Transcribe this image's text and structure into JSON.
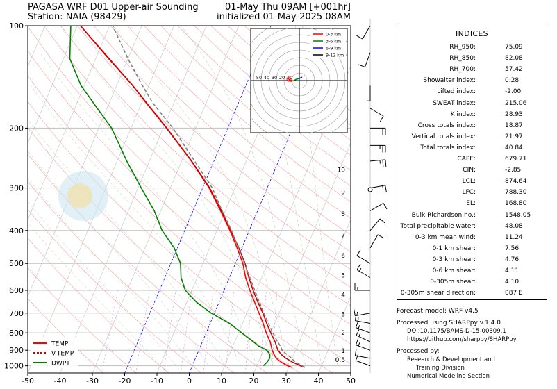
{
  "header": {
    "title_left_line1": "PAGASA WRF D01 Upper-air Sounding",
    "title_left_line2": "Station: NAIA (98429)",
    "title_right_line1": "01-May Thu 09AM [+001hr]",
    "title_right_line2": "initialized 01-May-2025 08AM"
  },
  "chart_data": {
    "type": "line",
    "subtype": "skew-t log-p sounding",
    "x_axis": {
      "label": "",
      "ticks": [
        -50,
        -40,
        -30,
        -20,
        -10,
        0,
        10,
        20,
        30,
        40,
        50
      ],
      "xlim": [
        -50,
        50
      ],
      "unit": "°C"
    },
    "y_axis": {
      "label": "",
      "scale": "log",
      "ticks": [
        100,
        200,
        300,
        400,
        500,
        600,
        700,
        800,
        900,
        1000
      ],
      "ylim": [
        1050,
        100
      ],
      "unit": "hPa"
    },
    "height_axis": {
      "unit": "km",
      "ticks": [
        "0.5",
        "1",
        "2",
        "3",
        "4",
        "5",
        "6",
        "7",
        "8",
        "9",
        "10"
      ]
    },
    "legend": {
      "position": "bottom-left",
      "entries": [
        {
          "name": "TEMP",
          "color": "#ff0000",
          "style": "solid"
        },
        {
          "name": "V.TEMP",
          "color": "#cc0000",
          "style": "dashed"
        },
        {
          "name": "DWPT",
          "color": "#008000",
          "style": "solid"
        }
      ]
    },
    "series": [
      {
        "name": "TEMP",
        "color": "#ff0000",
        "points": [
          [
            1010,
            31
          ],
          [
            1000,
            29.5
          ],
          [
            975,
            27
          ],
          [
            950,
            25
          ],
          [
            925,
            23.8
          ],
          [
            900,
            22.7
          ],
          [
            850,
            21
          ],
          [
            800,
            18.6
          ],
          [
            750,
            16.4
          ],
          [
            700,
            13.8
          ],
          [
            650,
            11
          ],
          [
            600,
            8
          ],
          [
            550,
            5
          ],
          [
            500,
            2.3
          ],
          [
            450,
            -1.5
          ],
          [
            400,
            -6
          ],
          [
            350,
            -11.5
          ],
          [
            300,
            -18
          ],
          [
            250,
            -27
          ],
          [
            200,
            -39
          ],
          [
            175,
            -46.5
          ],
          [
            150,
            -55
          ],
          [
            125,
            -66
          ],
          [
            100,
            -79
          ]
        ]
      },
      {
        "name": "V.TEMP",
        "color": "#cc0000",
        "points": [
          [
            1010,
            35
          ],
          [
            1000,
            33.5
          ],
          [
            975,
            30.5
          ],
          [
            950,
            28
          ],
          [
            925,
            26
          ],
          [
            900,
            24.5
          ],
          [
            850,
            22.5
          ],
          [
            800,
            20
          ],
          [
            750,
            17.5
          ],
          [
            700,
            15
          ],
          [
            650,
            12
          ],
          [
            600,
            9
          ],
          [
            550,
            6
          ],
          [
            500,
            3
          ],
          [
            450,
            -1
          ],
          [
            400,
            -5.7
          ],
          [
            350,
            -11.2
          ],
          [
            300,
            -17.8
          ],
          [
            250,
            -26.9
          ],
          [
            200,
            -38.9
          ],
          [
            150,
            -55
          ],
          [
            100,
            -79
          ]
        ]
      },
      {
        "name": "DWPT",
        "color": "#008000",
        "points": [
          [
            1000,
            22
          ],
          [
            975,
            22.7
          ],
          [
            950,
            23
          ],
          [
            925,
            22.5
          ],
          [
            900,
            21
          ],
          [
            875,
            18
          ],
          [
            850,
            15.8
          ],
          [
            800,
            11
          ],
          [
            750,
            6
          ],
          [
            700,
            -1
          ],
          [
            650,
            -7
          ],
          [
            600,
            -12
          ],
          [
            550,
            -15
          ],
          [
            500,
            -17
          ],
          [
            450,
            -21
          ],
          [
            400,
            -27
          ],
          [
            350,
            -32
          ],
          [
            300,
            -39
          ],
          [
            250,
            -47
          ],
          [
            200,
            -56
          ],
          [
            175,
            -63
          ],
          [
            150,
            -71
          ],
          [
            125,
            -78
          ],
          [
            100,
            -82
          ]
        ]
      },
      {
        "name": "Parcel",
        "color": "#808080",
        "style": "dashed",
        "points": [
          [
            1010,
            35
          ],
          [
            975,
            31.5
          ],
          [
            940,
            29
          ],
          [
            905,
            26
          ],
          [
            874.64,
            24.7
          ],
          [
            850,
            23.3
          ],
          [
            800,
            20.6
          ],
          [
            700,
            15.3
          ],
          [
            600,
            9.5
          ],
          [
            500,
            2.8
          ],
          [
            400,
            -5.5
          ],
          [
            350,
            -11
          ],
          [
            300,
            -17
          ],
          [
            250,
            -26
          ],
          [
            200,
            -37
          ],
          [
            168.8,
            -46.5
          ],
          [
            150,
            -52
          ],
          [
            125,
            -60
          ],
          [
            100,
            -69
          ]
        ]
      }
    ],
    "winds": [
      {
        "p": 100,
        "speed": 10,
        "dir": 210
      },
      {
        "p": 120,
        "speed": 10,
        "dir": 200
      },
      {
        "p": 150,
        "speed": 5,
        "dir": 180
      },
      {
        "p": 175,
        "speed": 10,
        "dir": 120
      },
      {
        "p": 200,
        "speed": 20,
        "dir": 90
      },
      {
        "p": 225,
        "speed": 25,
        "dir": 90
      },
      {
        "p": 250,
        "speed": 25,
        "dir": 85
      },
      {
        "p": 300,
        "speed": 15,
        "dir": 80
      },
      {
        "p": 350,
        "speed": 10,
        "dir": 60
      },
      {
        "p": 400,
        "speed": 10,
        "dir": 40
      },
      {
        "p": 450,
        "speed": 10,
        "dir": 30
      },
      {
        "p": 500,
        "speed": 10,
        "dir": 300
      },
      {
        "p": 550,
        "speed": 15,
        "dir": 300
      },
      {
        "p": 600,
        "speed": 15,
        "dir": 270
      },
      {
        "p": 700,
        "speed": 15,
        "dir": 260
      },
      {
        "p": 750,
        "speed": 15,
        "dir": 280
      },
      {
        "p": 800,
        "speed": 15,
        "dir": 290
      },
      {
        "p": 850,
        "speed": 15,
        "dir": 295
      },
      {
        "p": 900,
        "speed": 15,
        "dir": 290
      },
      {
        "p": 950,
        "speed": 10,
        "dir": 280
      },
      {
        "p": 1000,
        "speed": 10,
        "dir": 290
      }
    ],
    "hodograph": {
      "range_labels": [
        "50",
        "40",
        "30",
        "20",
        "10"
      ],
      "legend": [
        {
          "name": "0-3 km",
          "color": "#ff0000"
        },
        {
          "name": "3-6 km",
          "color": "#008000"
        },
        {
          "name": "6-9 km",
          "color": "#0000ff"
        },
        {
          "name": "9-12 km",
          "color": "#000000"
        }
      ]
    }
  },
  "indices": {
    "title": "INDICES",
    "rows": [
      {
        "label": "RH_950:",
        "value": "75.09"
      },
      {
        "label": "RH_850:",
        "value": "82.08"
      },
      {
        "label": "RH_700:",
        "value": "57.42"
      },
      {
        "label": "Showalter index:",
        "value": "0.28"
      },
      {
        "label": "Lifted index:",
        "value": "-2.00"
      },
      {
        "label": "SWEAT index:",
        "value": "215.06"
      },
      {
        "label": "K index:",
        "value": "28.93"
      },
      {
        "label": "Cross totals index:",
        "value": "18.87"
      },
      {
        "label": "Vertical totals index:",
        "value": "21.97"
      },
      {
        "label": "Total totals index:",
        "value": "40.84"
      },
      {
        "label": "CAPE:",
        "value": "679.71"
      },
      {
        "label": "CIN:",
        "value": "-2.85"
      },
      {
        "label": "LCL:",
        "value": "874.64"
      },
      {
        "label": "LFC:",
        "value": "788.30"
      },
      {
        "label": "EL:",
        "value": "168.80"
      },
      {
        "label": "Bulk Richardson no.:",
        "value": "1548.05"
      },
      {
        "label": "Total precipitable water:",
        "value": "48.08"
      },
      {
        "label": "0-3 km mean wind:",
        "value": "11.24"
      },
      {
        "label": "0-1 km shear:",
        "value": "7.56"
      },
      {
        "label": "0-3 km shear:",
        "value": "4.76"
      },
      {
        "label": "0-6 km shear:",
        "value": "4.11"
      },
      {
        "label": "0-305m shear:",
        "value": "4.10"
      },
      {
        "label": "0-305m shear direction:",
        "value": "087 E"
      }
    ]
  },
  "footer": {
    "forecast_model": "Forecast model: WRF v4.5",
    "processed_using": "Processed using SHARPpy v.1.4.0",
    "doi": "DOI:10.1175/BAMS-D-15-00309.1",
    "url": "https://github.com/sharppy/SHARPpy",
    "processed_by": "Processed by:",
    "org_line1": "Research & Development and",
    "org_line2": "Training Division",
    "org_line3": "Numerical Modeling Section"
  },
  "watermark": {
    "text": "PAGASA"
  },
  "colors": {
    "temp": "#ff0000",
    "dewpoint": "#008000",
    "parcel": "#808080",
    "isotherm_zero": "#0000ff"
  }
}
